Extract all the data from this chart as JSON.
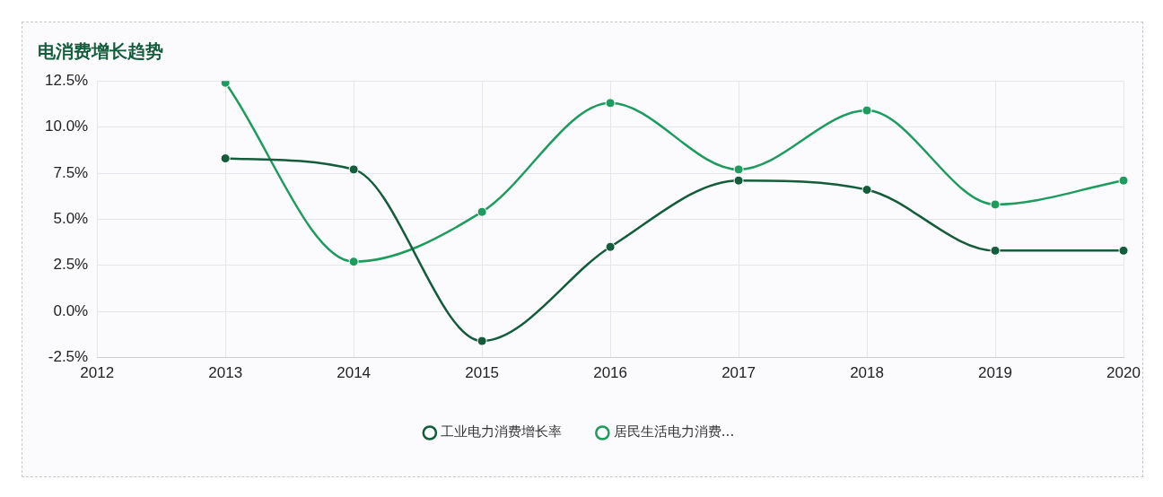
{
  "chart_data": {
    "type": "line",
    "title": "电消费增长趋势",
    "categories": [
      "2012",
      "2013",
      "2014",
      "2015",
      "2016",
      "2017",
      "2018",
      "2019",
      "2020"
    ],
    "series": [
      {
        "name": "工业电力消费增长率",
        "color": "#145c3c",
        "values": [
          null,
          8.3,
          7.7,
          -1.6,
          3.5,
          7.1,
          6.6,
          3.3,
          3.3
        ]
      },
      {
        "name": "居民生活电力消费...",
        "color": "#1e9b5e",
        "values": [
          null,
          12.4,
          2.7,
          5.4,
          11.3,
          7.7,
          10.9,
          5.8,
          7.1
        ]
      }
    ],
    "ylim": [
      -2.5,
      12.5
    ],
    "yticks": [
      {
        "value": -2.5,
        "label": "-2.5%"
      },
      {
        "value": 0,
        "label": "0.0%"
      },
      {
        "value": 2.5,
        "label": "2.5%"
      },
      {
        "value": 5,
        "label": "5.0%"
      },
      {
        "value": 7.5,
        "label": "7.5%"
      },
      {
        "value": 10,
        "label": "10.0%"
      },
      {
        "value": 12.5,
        "label": "12.5%"
      }
    ],
    "grid": true,
    "legend": "bottom",
    "marker": "circle",
    "line_style": "solid"
  }
}
